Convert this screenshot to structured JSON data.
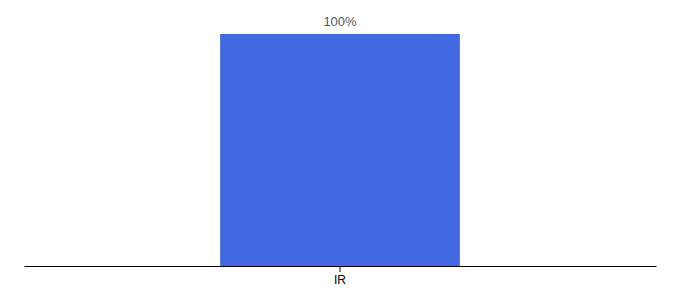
{
  "chart_data": {
    "type": "bar",
    "categories": [
      "IR"
    ],
    "values": [
      100
    ],
    "color": "#4169e1",
    "ylim": [
      0,
      100
    ],
    "data_labels": true,
    "value_labels": [
      "100%"
    ],
    "tick_labels": "x"
  }
}
